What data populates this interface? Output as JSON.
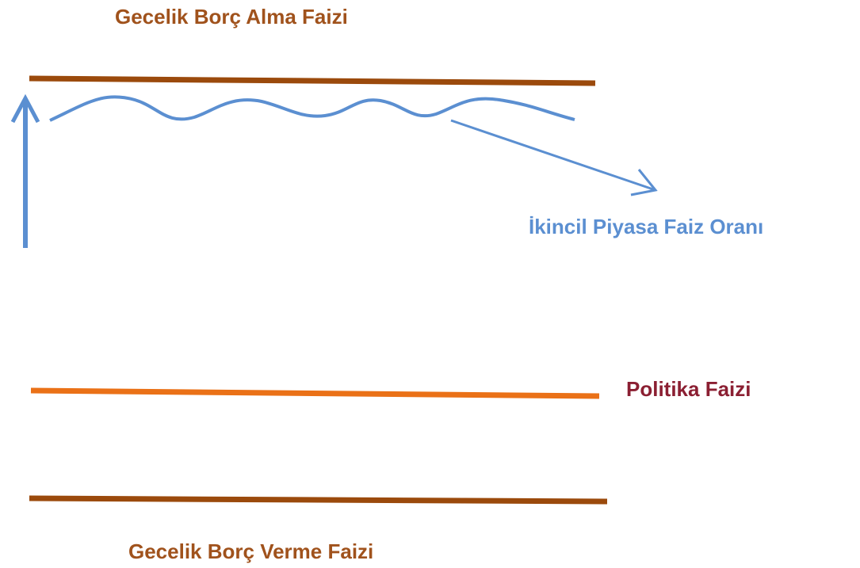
{
  "labels": {
    "top": "Gecelik Borç Alma Faizi",
    "secondary": "İkincil Piyasa Faiz Oranı",
    "policy": "Politika Faizi",
    "bottom": "Gecelik Borç Verme Faizi"
  }
}
